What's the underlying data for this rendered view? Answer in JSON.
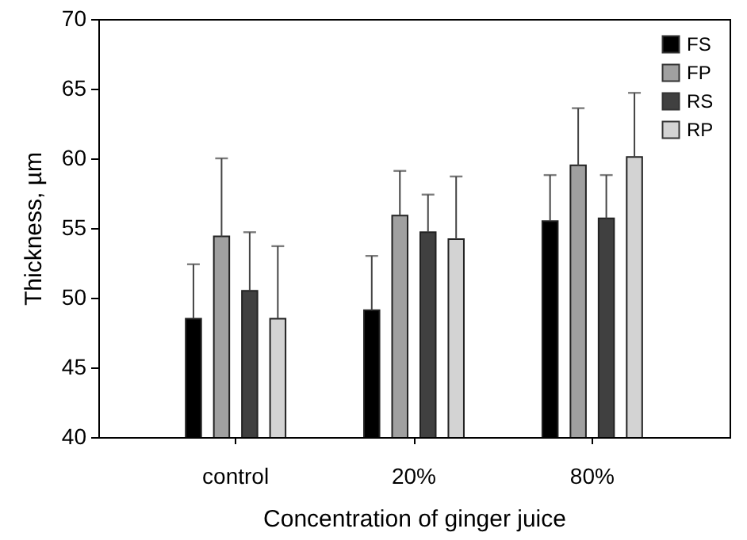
{
  "chart_data": {
    "type": "bar",
    "xlabel": "Concentration of ginger juice",
    "ylabel": "Thickness, µm",
    "categories": [
      "control",
      "20%",
      "80%"
    ],
    "ylim": [
      40,
      70
    ],
    "yticks": [
      40,
      45,
      50,
      55,
      60,
      65,
      70
    ],
    "legend": "top right",
    "series": [
      {
        "name": "FS",
        "color": "#000000",
        "values": [
          48.5,
          49.1,
          55.5
        ],
        "errors": [
          [
            48.5,
            52.4
          ],
          [
            49.1,
            53.0
          ],
          [
            55.5,
            58.8
          ]
        ]
      },
      {
        "name": "FP",
        "color": "#a0a0a0",
        "values": [
          54.4,
          55.9,
          59.5
        ],
        "errors": [
          [
            54.4,
            60.0
          ],
          [
            55.9,
            59.1
          ],
          [
            59.5,
            63.6
          ]
        ]
      },
      {
        "name": "RS",
        "color": "#404040",
        "values": [
          50.5,
          54.7,
          55.7
        ],
        "errors": [
          [
            50.5,
            54.7
          ],
          [
            54.7,
            57.4
          ],
          [
            55.7,
            58.8
          ]
        ]
      },
      {
        "name": "RP",
        "color": "#d3d3d3",
        "values": [
          48.5,
          54.2,
          60.1
        ],
        "errors": [
          [
            48.5,
            53.7
          ],
          [
            54.2,
            58.7
          ],
          [
            60.1,
            64.7
          ]
        ]
      }
    ]
  }
}
